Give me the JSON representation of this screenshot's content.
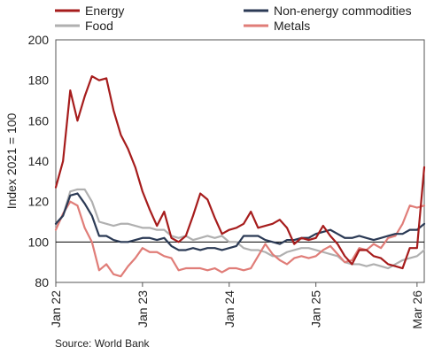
{
  "chart_data": {
    "type": "line",
    "title": "",
    "ylabel": "Index 2021 = 100",
    "xlabel": "",
    "ylim": [
      80,
      200
    ],
    "yticks": [
      80,
      100,
      120,
      140,
      160,
      180,
      200
    ],
    "xticks": [
      {
        "label": "Jan 22",
        "index": 0
      },
      {
        "label": "Jan 23",
        "index": 12
      },
      {
        "label": "Jan 24",
        "index": 24
      },
      {
        "label": "Jan 25",
        "index": 36
      },
      {
        "label": "Mar 26",
        "index": 50
      }
    ],
    "reference_line": 100,
    "legend_position": "top",
    "source": "Source: World Bank",
    "series": [
      {
        "name": "Energy",
        "color": "#a61c1c",
        "values": [
          127,
          140,
          175,
          160,
          172,
          182,
          180,
          181,
          165,
          153,
          146,
          137,
          125,
          116,
          108,
          115,
          102,
          100,
          103,
          113,
          124,
          121,
          112,
          104,
          106,
          107,
          109,
          115,
          107,
          108,
          109,
          111,
          107,
          99,
          102,
          101,
          102,
          108,
          103,
          99,
          93,
          89,
          96,
          96,
          93,
          92,
          89,
          88,
          87,
          97,
          97,
          137
        ]
      },
      {
        "name": "Non-energy commodities",
        "color": "#2b3a55",
        "values": [
          109,
          113,
          123,
          124,
          119,
          113,
          103,
          103,
          101,
          100,
          100,
          101,
          102,
          102,
          101,
          102,
          98,
          96,
          96,
          97,
          96,
          97,
          97,
          96,
          97,
          98,
          103,
          103,
          103,
          101,
          100,
          99,
          101,
          101,
          102,
          102,
          104,
          105,
          106,
          104,
          102,
          102,
          103,
          102,
          101,
          102,
          103,
          104,
          104,
          106,
          106,
          109
        ]
      },
      {
        "name": "Food",
        "color": "#b0b0b0",
        "values": [
          108,
          113,
          125,
          126,
          126,
          120,
          110,
          109,
          108,
          109,
          109,
          108,
          107,
          107,
          106,
          106,
          103,
          102,
          103,
          101,
          102,
          103,
          102,
          103,
          100,
          100,
          97,
          96,
          96,
          95,
          93,
          93,
          95,
          96,
          97,
          97,
          96,
          95,
          94,
          93,
          90,
          89,
          89,
          88,
          89,
          88,
          87,
          89,
          91,
          92,
          93,
          96
        ]
      },
      {
        "name": "Metals",
        "color": "#e07d78",
        "values": [
          106,
          114,
          120,
          118,
          107,
          100,
          86,
          89,
          84,
          83,
          88,
          92,
          97,
          95,
          95,
          93,
          92,
          86,
          87,
          87,
          87,
          86,
          87,
          85,
          87,
          87,
          86,
          87,
          93,
          99,
          94,
          91,
          89,
          92,
          93,
          92,
          93,
          96,
          98,
          94,
          90,
          91,
          97,
          96,
          99,
          97,
          102,
          103,
          109,
          118,
          117,
          118
        ]
      }
    ]
  }
}
